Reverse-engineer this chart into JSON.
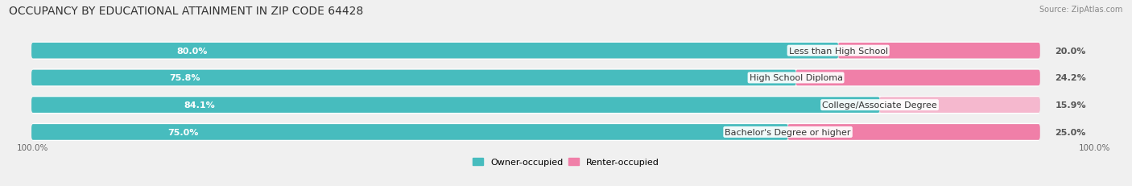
{
  "title": "OCCUPANCY BY EDUCATIONAL ATTAINMENT IN ZIP CODE 64428",
  "source": "Source: ZipAtlas.com",
  "categories": [
    "Less than High School",
    "High School Diploma",
    "College/Associate Degree",
    "Bachelor's Degree or higher"
  ],
  "owner_pct": [
    80.0,
    75.8,
    84.1,
    75.0
  ],
  "renter_pct": [
    20.0,
    24.2,
    15.9,
    25.0
  ],
  "owner_color": "#47BCBE",
  "renter_color": "#F07FA8",
  "renter_color_light": "#F5B8CE",
  "bg_color": "#f0f0f0",
  "bar_bg_color": "#e0e0e0",
  "row_bg_color": "#ffffff",
  "title_fontsize": 10,
  "label_fontsize": 8,
  "pct_fontsize": 8,
  "bar_height": 0.58,
  "total_width": 100
}
